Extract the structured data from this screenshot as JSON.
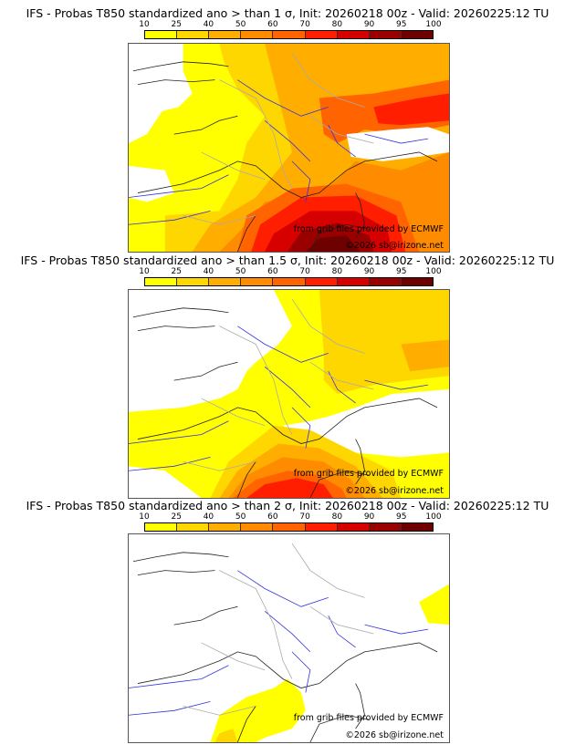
{
  "colorbar": {
    "ticks": [
      "10",
      "25",
      "40",
      "50",
      "60",
      "70",
      "80",
      "90",
      "95",
      "100"
    ],
    "colors": [
      "#ffff00",
      "#ffd700",
      "#ffae00",
      "#ff8c00",
      "#ff6400",
      "#ff1e00",
      "#d70000",
      "#9b0000",
      "#6e0000"
    ]
  },
  "panels": [
    {
      "title": "IFS - Probas T850  standardized ano > than 1 σ, Init: 20260218 00z - Valid: 20260225:12 TU",
      "threshold": "1 σ",
      "credit_source": "from grib files provided by ECMWF",
      "credit_copyright": "©2026 sb@irizone.net"
    },
    {
      "title": "IFS - Probas T850  standardized ano > than 1.5 σ, Init: 20260218 00z - Valid: 20260225:12 TU",
      "threshold": "1.5 σ",
      "credit_source": "from grib files provided by ECMWF",
      "credit_copyright": "©2026 sb@irizone.net"
    },
    {
      "title": "IFS - Probas T850  standardized ano > than 2 σ, Init: 20260218 00z - Valid: 20260225:12 TU",
      "threshold": "2 σ",
      "credit_source": "from grib files provided by ECMWF",
      "credit_copyright": "©2026 sb@irizone.net"
    }
  ],
  "map_colors": {
    "coast": "#222222",
    "rivers": "#3333dd",
    "borders": "#aaaaaa"
  }
}
